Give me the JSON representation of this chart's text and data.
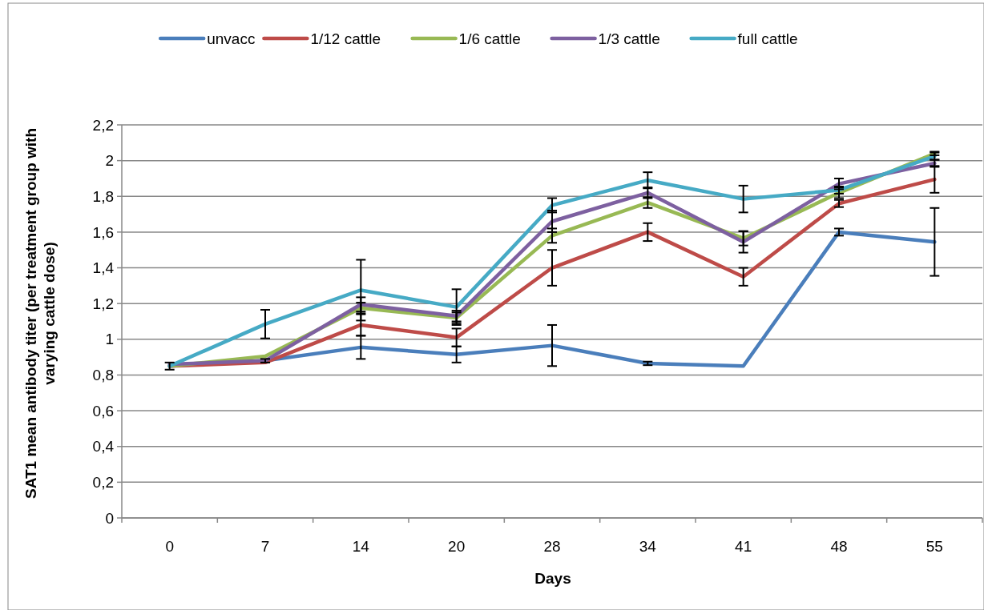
{
  "chart_data": {
    "type": "line",
    "xlabel": "Days",
    "ylabel": "SAT1 mean antibody titer (per treatment group with varying cattle dose)",
    "categories": [
      "0",
      "7",
      "14",
      "20",
      "28",
      "34",
      "41",
      "48",
      "55"
    ],
    "ylim": [
      0,
      2.2
    ],
    "yticks": [
      0,
      {
        "value": 0.2,
        "label": "0,2"
      },
      {
        "value": 0.4,
        "label": "0,4"
      },
      {
        "value": 0.6,
        "label": "0,6"
      },
      {
        "value": 0.8,
        "label": "0,8"
      },
      1,
      {
        "value": 1.2,
        "label": "1,2"
      },
      {
        "value": 1.4,
        "label": "1,4"
      },
      {
        "value": 1.6,
        "label": "1,6"
      },
      {
        "value": 1.8,
        "label": "1,8"
      },
      2,
      {
        "value": 2.2,
        "label": "2,2"
      }
    ],
    "grid": "y",
    "legend": "top",
    "line_style": "solid",
    "series": [
      {
        "name": "unvacc",
        "color": "#4a7ebb",
        "values": [
          0.85,
          0.88,
          0.955,
          0.915,
          0.965,
          0.865,
          0.85,
          1.6,
          1.545
        ],
        "errors": [
          0.02,
          0.01,
          0.065,
          0.045,
          0.115,
          0.01,
          null,
          0.02,
          0.19
        ]
      },
      {
        "name": "1/12 cattle",
        "color": "#be4b48",
        "values": [
          0.85,
          0.87,
          1.08,
          1.01,
          1.4,
          1.6,
          1.35,
          1.76,
          1.895
        ],
        "errors": [
          null,
          null,
          0.06,
          0.05,
          0.1,
          0.05,
          0.05,
          0.02,
          0.075
        ]
      },
      {
        "name": "1/6 cattle",
        "color": "#98b954",
        "values": [
          0.85,
          0.905,
          1.175,
          1.12,
          1.58,
          1.765,
          1.565,
          1.82,
          2.04
        ],
        "errors": [
          null,
          null,
          0.03,
          0.03,
          0.04,
          0.03,
          0.04,
          0.03,
          0.01
        ]
      },
      {
        "name": "1/3 cattle",
        "color": "#7d60a0",
        "values": [
          0.86,
          0.88,
          1.195,
          1.13,
          1.66,
          1.82,
          1.545,
          1.87,
          1.985
        ],
        "errors": [
          null,
          null,
          0.04,
          0.03,
          0.06,
          0.03,
          0.06,
          0.03,
          0.02
        ]
      },
      {
        "name": "full cattle",
        "color": "#46aac5",
        "values": [
          0.85,
          1.085,
          1.275,
          1.18,
          1.75,
          1.89,
          1.785,
          1.835,
          2.025
        ],
        "errors": [
          null,
          0.08,
          0.17,
          0.1,
          0.04,
          0.045,
          0.075,
          0.02,
          0.02
        ]
      }
    ]
  }
}
